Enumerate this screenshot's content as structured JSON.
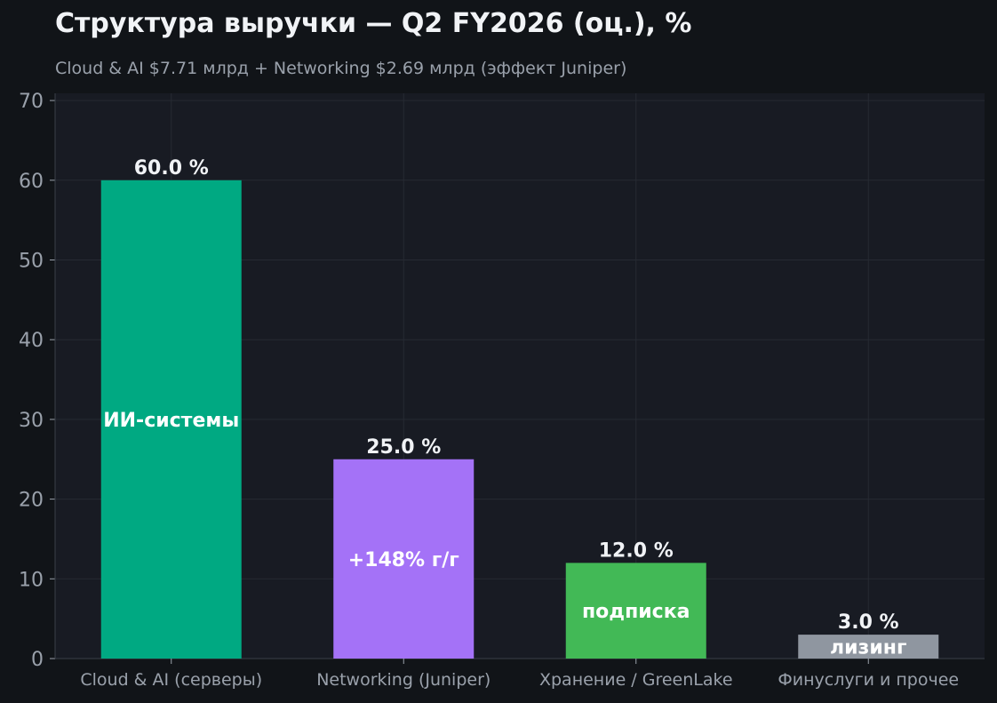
{
  "title": "Структура выручки — Q2 FY2026 (оц.), %",
  "subtitle": "Cloud & AI $7.71 млрд + Networking $2.69 млрд (эффект Juniper)",
  "chart_data": {
    "type": "bar",
    "title": "Структура выручки — Q2 FY2026 (оц.), %",
    "subtitle": "Cloud & AI $7.71 млрд + Networking $2.69 млрд (эффект Juniper)",
    "xlabel": "",
    "ylabel": "",
    "ylim": [
      0,
      70
    ],
    "yticks": [
      0,
      10,
      20,
      30,
      40,
      50,
      60,
      70
    ],
    "grid": true,
    "legend": "none",
    "categories": [
      "Cloud & AI (серверы)",
      "Networking (Juniper)",
      "Хранение / GreenLake",
      "Финуслуги и прочее"
    ],
    "values": [
      60.0,
      25.0,
      12.0,
      3.0
    ],
    "value_labels": [
      "60.0 %",
      "25.0 %",
      "12.0 %",
      "3.0 %"
    ],
    "inner_labels": [
      "ИИ-системы",
      "+148% г/г",
      "подписка",
      "лизинг"
    ],
    "colors": [
      "#00a982",
      "#a472f7",
      "#42b956",
      "#8f96a0"
    ],
    "background": "#181b23",
    "page_background": "#111418",
    "grid_color": "#262a33"
  }
}
